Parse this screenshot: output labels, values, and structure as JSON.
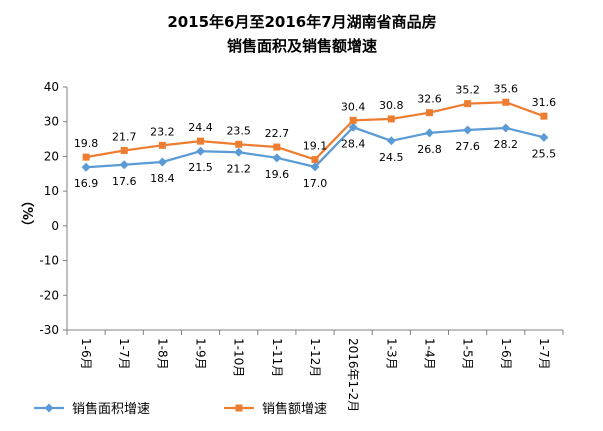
{
  "chart_data": {
    "type": "line",
    "title_lines": [
      "2015年6月至2016年7月湖南省商品房",
      "销售面积及销售额增速"
    ],
    "ylabel": "（%）",
    "xlabel": "",
    "ylim": [
      -30,
      40
    ],
    "yticks": [
      40,
      30,
      20,
      10,
      0,
      -10,
      -20,
      -30
    ],
    "grid": false,
    "legend_position": "bottom-left",
    "categories": [
      "1-6月",
      "1-7月",
      "1-8月",
      "1-9月",
      "1-10月",
      "1-11月",
      "1-12月",
      "2016年1-2月",
      "1-3月",
      "1-4月",
      "1-5月",
      "1-6月",
      "1-7月"
    ],
    "series": [
      {
        "name": "销售面积增速",
        "color": "#5B9BD5",
        "marker": "diamond",
        "values": [
          16.9,
          17.6,
          18.4,
          21.5,
          21.2,
          19.6,
          17.0,
          28.4,
          24.5,
          26.8,
          27.6,
          28.2,
          25.5
        ],
        "labels": [
          "16.9",
          "17.6",
          "18.4",
          "21.5",
          "21.2",
          "19.6",
          "17.0",
          "28.4",
          "24.5",
          "26.8",
          "27.6",
          "28.2",
          "25.5"
        ],
        "label_side": "below"
      },
      {
        "name": "销售额增速",
        "color": "#ED7D31",
        "marker": "square",
        "values": [
          19.8,
          21.7,
          23.2,
          24.4,
          23.5,
          22.7,
          19.1,
          30.4,
          30.8,
          32.6,
          35.2,
          35.6,
          31.6
        ],
        "labels": [
          "19.8",
          "21.7",
          "23.2",
          "24.4",
          "23.5",
          "22.7",
          "19.1",
          "30.4",
          "30.8",
          "32.6",
          "35.2",
          "35.6",
          "31.6"
        ],
        "label_side": "above"
      }
    ]
  }
}
